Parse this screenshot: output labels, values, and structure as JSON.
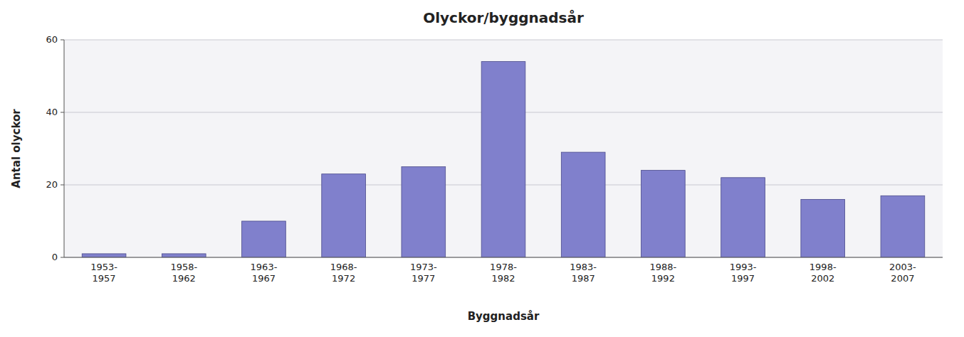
{
  "chart_data": {
    "type": "bar",
    "title": "Olyckor/byggnadsår",
    "xlabel": "Byggnadsår",
    "ylabel": "Antal olyckor",
    "categories": [
      "1953-\n1957",
      "1958-\n1962",
      "1963-\n1967",
      "1968-\n1972",
      "1973-\n1977",
      "1978-\n1982",
      "1983-\n1987",
      "1988-\n1992",
      "1993-\n1997",
      "1998-\n2002",
      "2003-\n2007"
    ],
    "values": [
      1,
      1,
      10,
      23,
      25,
      54,
      29,
      24,
      22,
      16,
      17
    ],
    "color": "#8080cc",
    "ylim": [
      0,
      60
    ],
    "yticks": [
      0,
      20,
      40,
      60
    ],
    "grid": true
  }
}
